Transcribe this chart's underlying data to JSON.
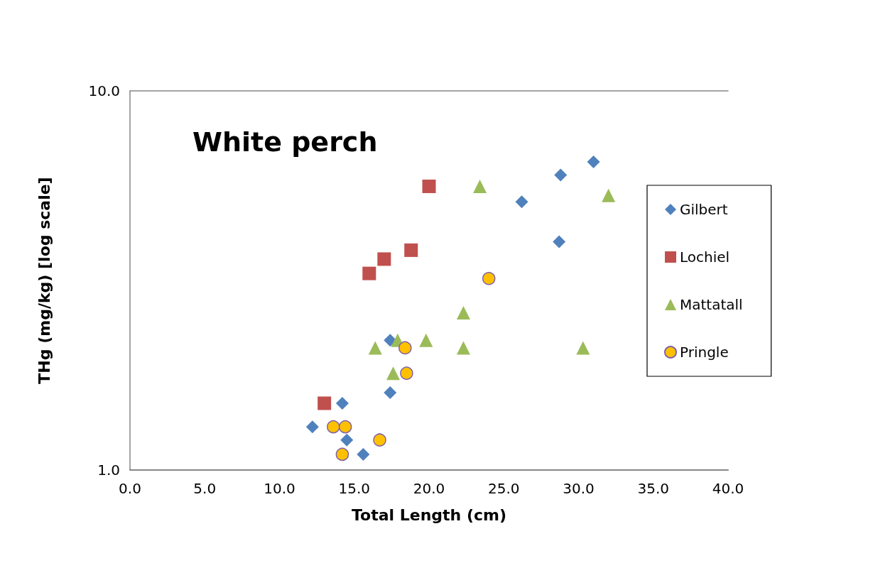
{
  "chart_data": {
    "type": "scatter",
    "title": "White perch",
    "xlabel": "Total Length (cm)",
    "ylabel": "THg (mg/kg) [log scale]",
    "xlim": [
      0,
      40
    ],
    "xticks": [
      {
        "value": 0,
        "label": "0.0"
      },
      {
        "value": 5,
        "label": "5.0"
      },
      {
        "value": 10,
        "label": "10.0"
      },
      {
        "value": 15,
        "label": "15.0"
      },
      {
        "value": 20,
        "label": "20.0"
      },
      {
        "value": 25,
        "label": "25.0"
      },
      {
        "value": 30,
        "label": "30.0"
      },
      {
        "value": 35,
        "label": "35.0"
      },
      {
        "value": 40,
        "label": "40.0"
      }
    ],
    "ylim": [
      1,
      10
    ],
    "yticks": [
      {
        "value": 1,
        "label": "1.0"
      },
      {
        "value": 10,
        "label": "10.0"
      }
    ],
    "log": "y",
    "grid": false,
    "legend": "right",
    "series": [
      {
        "name": "Gilbert",
        "color": "#4f81bd",
        "marker": "diamond",
        "x": [
          31.0,
          28.8,
          26.2,
          28.7,
          17.4,
          17.4,
          14.2,
          12.2,
          14.5,
          15.6
        ],
        "values": [
          6.5,
          6.0,
          5.1,
          4.0,
          2.2,
          1.6,
          1.5,
          1.3,
          1.2,
          1.1
        ]
      },
      {
        "name": "Lochiel",
        "color": "#c0504d",
        "marker": "square",
        "x": [
          20.0,
          18.8,
          17.0,
          16.0,
          13.0
        ],
        "values": [
          5.6,
          3.8,
          3.6,
          3.3,
          1.5
        ]
      },
      {
        "name": "Mattatall",
        "color": "#9bbb59",
        "marker": "triangle",
        "x": [
          23.4,
          32.0,
          22.3,
          19.8,
          17.9,
          16.4,
          22.3,
          30.3,
          17.6
        ],
        "values": [
          5.6,
          5.3,
          2.6,
          2.2,
          2.2,
          2.1,
          2.1,
          2.1,
          1.8
        ]
      },
      {
        "name": "Pringle",
        "color": "#ffc000",
        "marker": "circle",
        "x": [
          24.0,
          18.4,
          18.5,
          13.6,
          14.4,
          16.7,
          14.2
        ],
        "values": [
          3.2,
          2.1,
          1.8,
          1.3,
          1.3,
          1.2,
          1.1
        ]
      }
    ]
  }
}
